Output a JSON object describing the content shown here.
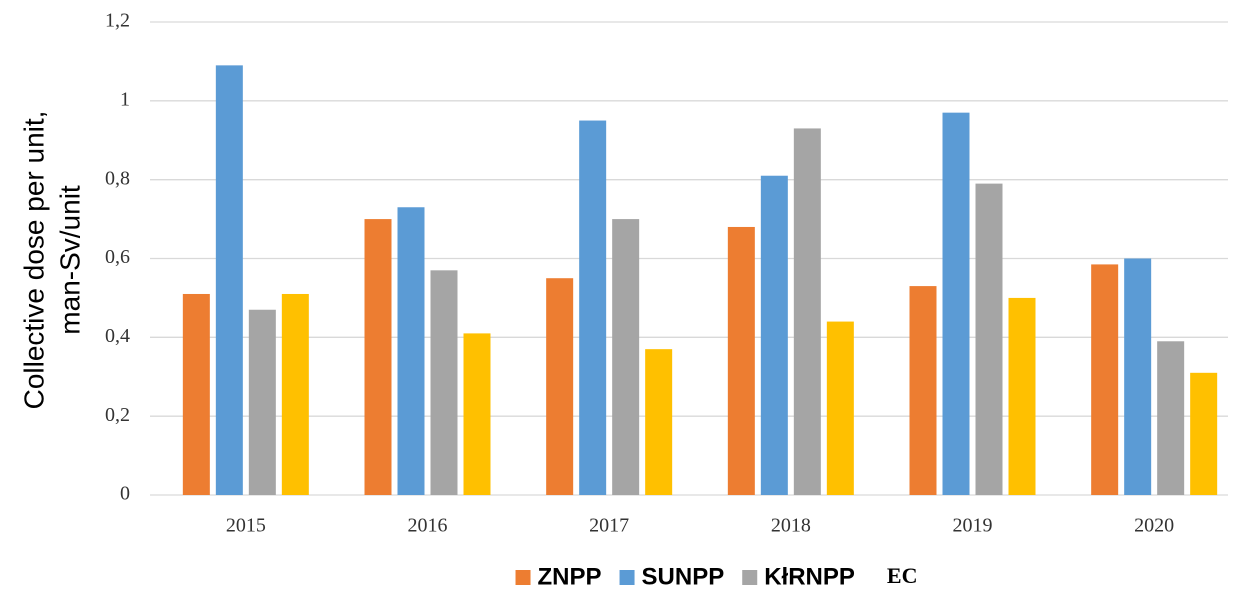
{
  "chart_data": {
    "type": "bar",
    "y_label": [
      "Collective dose per unit,",
      "man-Sv/unit"
    ],
    "categories": [
      "2015",
      "2016",
      "2017",
      "2018",
      "2019",
      "2020"
    ],
    "series": [
      {
        "name": "ZNPP",
        "color": "#ed7d31",
        "values": [
          0.51,
          0.7,
          0.55,
          0.68,
          0.53,
          0.585
        ]
      },
      {
        "name": "SUNPP",
        "color": "#5b9bd5",
        "values": [
          1.09,
          0.73,
          0.95,
          0.81,
          0.97,
          0.6
        ]
      },
      {
        "name": "KłRNPP",
        "color": "#a5a5a5",
        "values": [
          0.47,
          0.57,
          0.7,
          0.93,
          0.79,
          0.39
        ]
      },
      {
        "name": "EC",
        "color": "#ffc000",
        "values": [
          0.51,
          0.41,
          0.37,
          0.44,
          0.5,
          0.31
        ],
        "legend_swatch": false
      }
    ],
    "ylim": [
      0,
      1.2
    ],
    "yticks": [
      0,
      {
        "value": 0.2,
        "label": "0,2"
      },
      {
        "value": 0.4,
        "label": "0,4"
      },
      {
        "value": 0.6,
        "label": "0,6"
      },
      {
        "value": 0.8,
        "label": "0,8"
      },
      1,
      {
        "value": 1.2,
        "label": "1,2"
      }
    ],
    "grid": true,
    "legend": "bottom"
  }
}
